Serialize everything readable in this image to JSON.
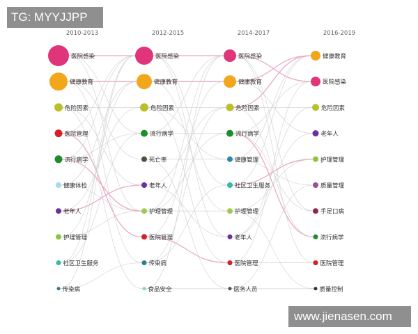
{
  "watermarks": {
    "top_left": "TG: MYYJJPP",
    "bottom_right": "www.jienasen.com"
  },
  "columns": [
    {
      "period": "2010-2013",
      "topics": [
        {
          "label": "医院感染",
          "color": "#e0357a"
        },
        {
          "label": "健康教育",
          "color": "#f2a71b"
        },
        {
          "label": "危险因素",
          "color": "#b9c02c"
        },
        {
          "label": "医院管理",
          "color": "#d61f26"
        },
        {
          "label": "流行病学",
          "color": "#1e8e2c"
        },
        {
          "label": "健康体检",
          "color": "#a8d8ea"
        },
        {
          "label": "老年人",
          "color": "#6a2fa0"
        },
        {
          "label": "护理管理",
          "color": "#8fc43f"
        },
        {
          "label": "社区卫生服务",
          "color": "#38b9a8"
        },
        {
          "label": "传染病",
          "color": "#2b7f8a"
        }
      ]
    },
    {
      "period": "2012-2015",
      "topics": [
        {
          "label": "医院感染",
          "color": "#e0357a"
        },
        {
          "label": "健康教育",
          "color": "#f2a71b"
        },
        {
          "label": "危险因素",
          "color": "#b9c02c"
        },
        {
          "label": "流行病学",
          "color": "#1e8e2c"
        },
        {
          "label": "死亡率",
          "color": "#5a4a3a"
        },
        {
          "label": "老年人",
          "color": "#6a2fa0"
        },
        {
          "label": "护理管理",
          "color": "#a2c94a"
        },
        {
          "label": "医院管理",
          "color": "#d61f26"
        },
        {
          "label": "传染病",
          "color": "#2b7f8a"
        },
        {
          "label": "食品安全",
          "color": "#7fd6c8"
        }
      ]
    },
    {
      "period": "2014-2017",
      "topics": [
        {
          "label": "医院感染",
          "color": "#e0357a"
        },
        {
          "label": "健康教育",
          "color": "#f2a71b"
        },
        {
          "label": "危险因素",
          "color": "#b9c02c"
        },
        {
          "label": "流行病学",
          "color": "#1e8e2c"
        },
        {
          "label": "健康管理",
          "color": "#2a8ca8"
        },
        {
          "label": "社区卫生服务",
          "color": "#38b9a8"
        },
        {
          "label": "护理管理",
          "color": "#a2c94a"
        },
        {
          "label": "老年人",
          "color": "#6a2fa0"
        },
        {
          "label": "医院管理",
          "color": "#d61f26"
        },
        {
          "label": "医务人员",
          "color": "#555555"
        }
      ]
    },
    {
      "period": "2016-2019",
      "topics": [
        {
          "label": "健康教育",
          "color": "#f2a71b"
        },
        {
          "label": "医院感染",
          "color": "#e0357a"
        },
        {
          "label": "危险因素",
          "color": "#b9c02c"
        },
        {
          "label": "老年人",
          "color": "#6a2fa0"
        },
        {
          "label": "护理管理",
          "color": "#8fc43f"
        },
        {
          "label": "质量管理",
          "color": "#9b4f96"
        },
        {
          "label": "手足口病",
          "color": "#8a2a4a"
        },
        {
          "label": "流行病学",
          "color": "#1e8e2c"
        },
        {
          "label": "医院管理",
          "color": "#d61f26"
        },
        {
          "label": "质量控制",
          "color": "#333333"
        }
      ]
    }
  ],
  "links": [
    [
      0,
      0,
      0,
      "#e8a0c0"
    ],
    [
      0,
      1,
      1,
      "#e8a0c0"
    ],
    [
      0,
      2,
      2,
      "#cccccc"
    ],
    [
      0,
      3,
      7,
      "#e8a0c0"
    ],
    [
      0,
      4,
      3,
      "#cccccc"
    ],
    [
      0,
      5,
      1,
      "#cccccc"
    ],
    [
      0,
      6,
      5,
      "#e8a0c0"
    ],
    [
      0,
      7,
      6,
      "#cccccc"
    ],
    [
      0,
      8,
      0,
      "#cccccc"
    ],
    [
      0,
      9,
      8,
      "#cccccc"
    ],
    [
      0,
      0,
      3,
      "#cccccc"
    ],
    [
      0,
      1,
      4,
      "#cccccc"
    ],
    [
      0,
      2,
      5,
      "#cccccc"
    ],
    [
      0,
      4,
      0,
      "#cccccc"
    ],
    [
      0,
      6,
      2,
      "#cccccc"
    ],
    [
      0,
      7,
      1,
      "#cccccc"
    ],
    [
      0,
      8,
      3,
      "#cccccc"
    ],
    [
      0,
      9,
      0,
      "#cccccc"
    ],
    [
      0,
      3,
      0,
      "#cccccc"
    ],
    [
      0,
      5,
      6,
      "#cccccc"
    ],
    [
      0,
      1,
      8,
      "#cccccc"
    ],
    [
      0,
      0,
      6,
      "#cccccc"
    ],
    [
      0,
      2,
      9,
      "#cccccc"
    ],
    [
      0,
      4,
      6,
      "#e8a0c0"
    ],
    [
      1,
      0,
      0,
      "#e8a0c0"
    ],
    [
      1,
      1,
      1,
      "#e8a0c0"
    ],
    [
      1,
      2,
      2,
      "#cccccc"
    ],
    [
      1,
      3,
      3,
      "#cccccc"
    ],
    [
      1,
      5,
      7,
      "#cccccc"
    ],
    [
      1,
      6,
      6,
      "#cccccc"
    ],
    [
      1,
      7,
      8,
      "#e8a0c0"
    ],
    [
      1,
      8,
      2,
      "#cccccc"
    ],
    [
      1,
      9,
      9,
      "#cccccc"
    ],
    [
      1,
      4,
      4,
      "#cccccc"
    ],
    [
      1,
      0,
      5,
      "#cccccc"
    ],
    [
      1,
      1,
      6,
      "#cccccc"
    ],
    [
      1,
      2,
      8,
      "#cccccc"
    ],
    [
      1,
      3,
      0,
      "#cccccc"
    ],
    [
      1,
      5,
      2,
      "#cccccc"
    ],
    [
      1,
      6,
      3,
      "#cccccc"
    ],
    [
      1,
      7,
      1,
      "#cccccc"
    ],
    [
      1,
      8,
      5,
      "#cccccc"
    ],
    [
      1,
      9,
      0,
      "#cccccc"
    ],
    [
      1,
      4,
      9,
      "#cccccc"
    ],
    [
      1,
      0,
      7,
      "#cccccc"
    ],
    [
      1,
      2,
      4,
      "#cccccc"
    ],
    [
      1,
      6,
      0,
      "#cccccc"
    ],
    [
      2,
      0,
      1,
      "#e8a0c0"
    ],
    [
      2,
      1,
      0,
      "#e8a0c0"
    ],
    [
      2,
      2,
      2,
      "#cccccc"
    ],
    [
      2,
      3,
      7,
      "#e8a0c0"
    ],
    [
      2,
      4,
      0,
      "#cccccc"
    ],
    [
      2,
      5,
      4,
      "#e8a0c0"
    ],
    [
      2,
      6,
      4,
      "#cccccc"
    ],
    [
      2,
      7,
      3,
      "#cccccc"
    ],
    [
      2,
      8,
      8,
      "#cccccc"
    ],
    [
      2,
      9,
      9,
      "#cccccc"
    ],
    [
      2,
      0,
      6,
      "#cccccc"
    ],
    [
      2,
      1,
      3,
      "#cccccc"
    ],
    [
      2,
      2,
      7,
      "#cccccc"
    ],
    [
      2,
      3,
      1,
      "#cccccc"
    ],
    [
      2,
      4,
      5,
      "#cccccc"
    ],
    [
      2,
      5,
      0,
      "#cccccc"
    ],
    [
      2,
      6,
      9,
      "#cccccc"
    ],
    [
      2,
      7,
      2,
      "#cccccc"
    ],
    [
      2,
      8,
      1,
      "#cccccc"
    ],
    [
      2,
      9,
      5,
      "#cccccc"
    ],
    [
      2,
      0,
      8,
      "#cccccc"
    ],
    [
      2,
      3,
      6,
      "#cccccc"
    ],
    [
      2,
      2,
      0,
      "#e8a0c0"
    ]
  ]
}
